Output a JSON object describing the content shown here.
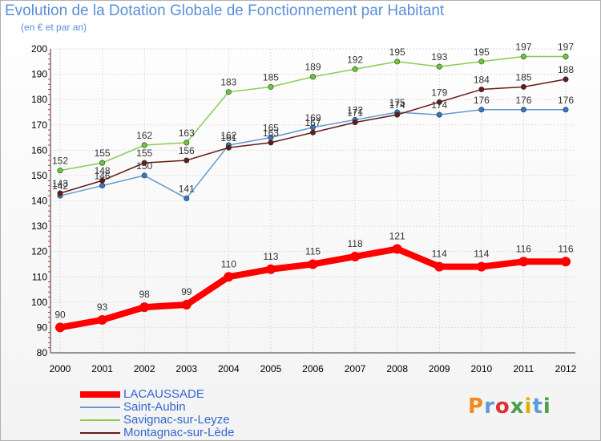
{
  "title": "Evolution de la Dotation Globale de Fonctionnement par Habitant",
  "subtitle": "(en € et par an)",
  "logo": {
    "text": "Proxiti",
    "colors": [
      "#f08a1c",
      "#5a9be0",
      "#e03030",
      "#4aa04a",
      "#e0b000",
      "#5a9be0",
      "#4aa04a"
    ]
  },
  "chart_data": {
    "type": "line",
    "title": "Evolution de la Dotation Globale de Fonctionnement par Habitant",
    "subtitle": "(en € et par an)",
    "xlabel": "",
    "ylabel": "",
    "x": [
      "2000",
      "2001",
      "2002",
      "2003",
      "2004",
      "2005",
      "2006",
      "2007",
      "2008",
      "2009",
      "2010",
      "2011",
      "2012"
    ],
    "ylim": [
      80,
      200
    ],
    "yticks": [
      80,
      90,
      100,
      110,
      120,
      130,
      140,
      150,
      160,
      170,
      180,
      190,
      200
    ],
    "grid": true,
    "legend_position": "bottom-left",
    "series": [
      {
        "name": "LACAUSSADE",
        "values": [
          90,
          93,
          98,
          99,
          110,
          113,
          115,
          118,
          121,
          114,
          114,
          116,
          116
        ],
        "color": "#ff0000",
        "marker": "#ff0000",
        "emphasis": true
      },
      {
        "name": "Saint-Aubin",
        "values": [
          142,
          146,
          150,
          141,
          162,
          165,
          169,
          172,
          175,
          174,
          176,
          176,
          176
        ],
        "color": "#6699cc",
        "marker": "#3377cc",
        "emphasis": false
      },
      {
        "name": "Savignac-sur-Leyze",
        "values": [
          152,
          155,
          162,
          163,
          183,
          185,
          189,
          192,
          195,
          193,
          195,
          197,
          197
        ],
        "color": "#88cc55",
        "marker": "#66cc33",
        "emphasis": false
      },
      {
        "name": "Montagnac-sur-Lède",
        "values": [
          143,
          148,
          155,
          156,
          161,
          163,
          167,
          171,
          174,
          179,
          184,
          185,
          188
        ],
        "color": "#661a1a",
        "marker": "#661a1a",
        "emphasis": false
      }
    ],
    "labels": {
      "LACAUSSADE": [
        "90",
        "93",
        "98",
        "99",
        "110",
        "113",
        "115",
        "118",
        "121",
        "114",
        "114",
        "116",
        "116"
      ],
      "Saint-Aubin": [
        "142",
        "146",
        "150",
        "141",
        "162",
        "165",
        "169",
        "172",
        "175",
        "174",
        "176",
        "176",
        "176"
      ],
      "Savignac-sur-Leyze": [
        "152",
        "155",
        "162",
        "163",
        "183",
        "185",
        "189",
        "192",
        "195",
        "193",
        "195",
        "197",
        "197"
      ],
      "Montagnac-sur-Lède": [
        "143",
        "148",
        "155",
        "156",
        "161",
        "163",
        "167",
        "171",
        "174",
        "179",
        "184",
        "185",
        "188"
      ]
    }
  }
}
